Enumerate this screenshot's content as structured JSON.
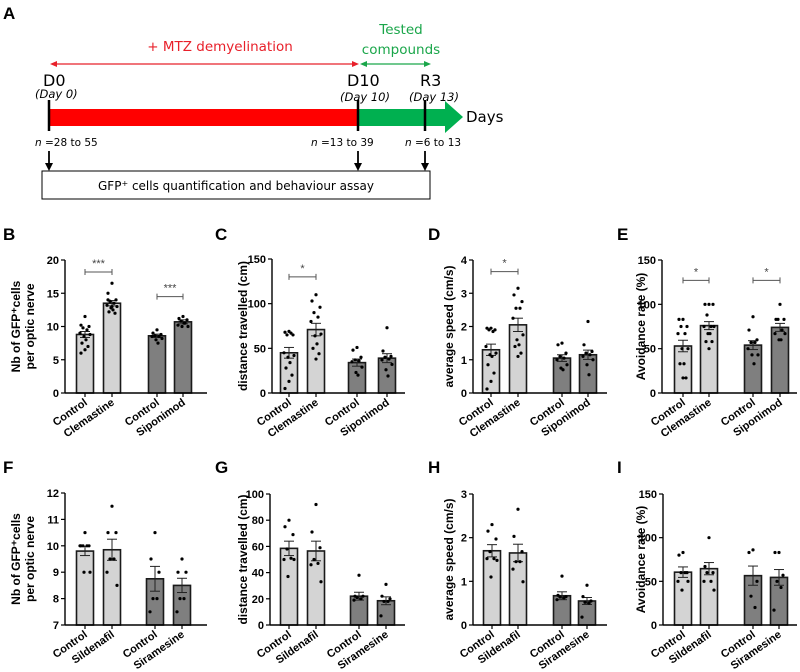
{
  "timeline": {
    "panel_letter": "A",
    "demyelination_label": "+ MTZ demyelination",
    "compounds_label_line1": "Tested",
    "compounds_label_line2": "compounds",
    "points": [
      {
        "code": "D0",
        "day": "(Day 0)",
        "n_prefix": "n",
        "n_text": " =28 to 55"
      },
      {
        "code": "D10",
        "day": "(Day 10)",
        "n_prefix": "n",
        "n_text": " =13 to 39"
      },
      {
        "code": "R3",
        "day": "(Day 13)",
        "n_prefix": "n",
        "n_text": " =6 to 13"
      }
    ],
    "axis_label": "Days",
    "assay_box_text_pre": "GFP",
    "assay_box_text_sup": "+",
    "assay_box_text_post": " cells quantification and behaviour assay",
    "colors": {
      "demyelination": "#ff0000",
      "compounds": "#00b050",
      "demyelination_text": "#e8202a",
      "compounds_text": "#1aa64a"
    }
  },
  "colors": {
    "light_bar": "#d4d4d4",
    "dark_bar": "#7f7f7f",
    "bar_edge": "#1a1a1a",
    "point": "#000000"
  },
  "chart_data": [
    {
      "panel": "B",
      "type": "bar",
      "ylabel_line1": "Nb of GFP⁺cells",
      "ylabel_line2": "per optic nerve",
      "ylim": [
        0,
        20
      ],
      "yticks": [
        0,
        5,
        10,
        15,
        20
      ],
      "categories": [
        "Control",
        "Clemastine",
        "Control",
        "Siponimod"
      ],
      "groups": [
        "light",
        "light",
        "dark",
        "dark"
      ],
      "values": [
        8.8,
        13.5,
        8.6,
        10.7
      ],
      "sem": [
        0.45,
        0.4,
        0.25,
        0.3
      ],
      "points": [
        [
          11.5,
          10.2,
          10.0,
          9.8,
          9.5,
          9.0,
          8.8,
          8.5,
          8.0,
          7.5,
          7.0,
          6.5,
          6.0
        ],
        [
          16.5,
          15.0,
          14.0,
          13.8,
          13.5,
          13.2,
          13.0,
          12.8,
          12.5,
          12.2,
          12.0,
          13.0,
          14.0
        ],
        [
          9.5,
          9.0,
          8.8,
          8.6,
          8.5,
          8.5,
          8.2,
          8.0,
          7.5
        ],
        [
          11.5,
          11.2,
          11.0,
          10.8,
          10.5,
          10.2,
          10.0,
          10.0,
          10.5
        ]
      ],
      "significance": [
        {
          "from": 0,
          "to": 1,
          "label": "***",
          "y": 18.2
        },
        {
          "from": 2,
          "to": 3,
          "label": "***",
          "y": 14.5
        }
      ]
    },
    {
      "panel": "C",
      "type": "bar",
      "ylabel_line1": "distance travelled (cm)",
      "ylabel_line2": "",
      "ylim": [
        0,
        150
      ],
      "yticks": [
        0,
        50,
        100,
        150
      ],
      "categories": [
        "Control",
        "Clemastine",
        "Control",
        "Siponimod"
      ],
      "groups": [
        "light",
        "light",
        "dark",
        "dark"
      ],
      "values": [
        45,
        71,
        34,
        39
      ],
      "sem": [
        6,
        7,
        4,
        5
      ],
      "points": [
        [
          69,
          68,
          65,
          65,
          67,
          45,
          42,
          40,
          34,
          28,
          20,
          13,
          5
        ],
        [
          110,
          103,
          96,
          90,
          85,
          80,
          66,
          64,
          55,
          50,
          44,
          38
        ],
        [
          51,
          48,
          40,
          37,
          36,
          35,
          29,
          23,
          20
        ],
        [
          73,
          47,
          41,
          40,
          38,
          37,
          32,
          26,
          19
        ]
      ],
      "significance": [
        {
          "from": 0,
          "to": 1,
          "label": "*",
          "y": 130
        }
      ]
    },
    {
      "panel": "D",
      "type": "bar",
      "ylabel_line1": "average speed (cm/s)",
      "ylabel_line2": "",
      "ylim": [
        0,
        4
      ],
      "yticks": [
        0,
        1,
        2,
        3,
        4
      ],
      "categories": [
        "Control",
        "Clemastine",
        "Control",
        "Siponimod"
      ],
      "groups": [
        "light",
        "light",
        "dark",
        "dark"
      ],
      "values": [
        1.3,
        2.05,
        1.05,
        1.15
      ],
      "sem": [
        0.17,
        0.2,
        0.1,
        0.14
      ],
      "points": [
        [
          1.95,
          1.95,
          1.9,
          1.9,
          1.85,
          1.4,
          1.2,
          1.15,
          1.1,
          0.85,
          0.6,
          0.35,
          0.12
        ],
        [
          3.15,
          2.95,
          2.75,
          2.55,
          2.55,
          2.25,
          1.75,
          1.6,
          1.45,
          1.4,
          1.2,
          1.1
        ],
        [
          1.5,
          1.45,
          1.2,
          1.1,
          1.05,
          1.0,
          0.85,
          0.75,
          0.7
        ],
        [
          2.15,
          1.45,
          1.25,
          1.2,
          1.15,
          1.1,
          1.0,
          0.85,
          0.55
        ]
      ],
      "significance": [
        {
          "from": 0,
          "to": 1,
          "label": "*",
          "y": 3.65
        }
      ]
    },
    {
      "panel": "E",
      "type": "bar",
      "ylabel_line1": "Avoidance rate (%)",
      "ylabel_line2": "",
      "ylim": [
        0,
        150
      ],
      "yticks": [
        0,
        50,
        100,
        150
      ],
      "categories": [
        "Control",
        "Clemastine",
        "Control",
        "Siponimod"
      ],
      "groups": [
        "light",
        "light",
        "dark",
        "dark"
      ],
      "values": [
        53,
        76,
        54,
        74
      ],
      "sem": [
        6.5,
        4.5,
        5,
        4.5
      ],
      "points": [
        [
          83,
          83,
          75,
          75,
          67,
          67,
          50,
          50,
          33,
          33,
          17,
          17
        ],
        [
          100,
          100,
          100,
          88,
          75,
          75,
          75,
          67,
          67,
          58,
          58,
          50
        ],
        [
          86,
          71,
          60,
          57,
          57,
          50,
          43,
          43,
          33
        ],
        [
          100,
          83,
          83,
          83,
          71,
          67,
          67,
          60,
          60
        ]
      ],
      "significance": [
        {
          "from": 0,
          "to": 1,
          "label": "*",
          "y": 127
        },
        {
          "from": 2,
          "to": 3,
          "label": "*",
          "y": 127
        }
      ]
    },
    {
      "panel": "F",
      "type": "bar",
      "ylabel_line1": "Nb of GFP⁺cells",
      "ylabel_line2": "per optic nerve",
      "ylim": [
        7,
        12
      ],
      "yticks": [
        7,
        8,
        9,
        10,
        11,
        12
      ],
      "categories": [
        "Control",
        "Sildenafil",
        "Control",
        "Siramesine"
      ],
      "groups": [
        "light",
        "light",
        "dark",
        "dark"
      ],
      "values": [
        9.8,
        9.85,
        8.75,
        8.5
      ],
      "sem": [
        0.17,
        0.4,
        0.47,
        0.27
      ],
      "points": [
        [
          10.5,
          10.0,
          10.0,
          10.0,
          10.0,
          10.0,
          9.0,
          9.0
        ],
        [
          11.5,
          10.5,
          10.5,
          9.5,
          9.5,
          9.0,
          8.5
        ],
        [
          10.5,
          9.5,
          9.0,
          8.0,
          8.0,
          7.5
        ],
        [
          9.5,
          9.0,
          9.0,
          8.0,
          8.0,
          7.5
        ]
      ],
      "significance": []
    },
    {
      "panel": "G",
      "type": "bar",
      "ylabel_line1": "distance travelled (cm)",
      "ylabel_line2": "",
      "ylim": [
        0,
        100
      ],
      "yticks": [
        0,
        20,
        40,
        60,
        80,
        100
      ],
      "categories": [
        "Control",
        "Sildenafil",
        "Control",
        "Siramesine"
      ],
      "groups": [
        "light",
        "light",
        "dark",
        "dark"
      ],
      "values": [
        58.5,
        56.5,
        22,
        18.5
      ],
      "sem": [
        5.5,
        7.5,
        3,
        3
      ],
      "points": [
        [
          80,
          75,
          69,
          58,
          51,
          50,
          50,
          37
        ],
        [
          92,
          71,
          59,
          50,
          47,
          46,
          33
        ],
        [
          38,
          22,
          22,
          21,
          20,
          19
        ],
        [
          31,
          22,
          20,
          18,
          18,
          7
        ]
      ],
      "significance": []
    },
    {
      "panel": "H",
      "type": "bar",
      "ylabel_line1": "average speed (cm/s)",
      "ylabel_line2": "",
      "ylim": [
        0,
        3
      ],
      "yticks": [
        0,
        1,
        2,
        3
      ],
      "categories": [
        "Control",
        "Sildenafil",
        "Control",
        "Siramesine"
      ],
      "groups": [
        "light",
        "light",
        "dark",
        "dark"
      ],
      "values": [
        1.7,
        1.65,
        0.67,
        0.55
      ],
      "sem": [
        0.14,
        0.2,
        0.09,
        0.08
      ],
      "points": [
        [
          2.3,
          2.15,
          1.97,
          1.68,
          1.52,
          1.52,
          1.48,
          1.1
        ],
        [
          2.65,
          2.03,
          1.68,
          1.45,
          1.45,
          1.28,
          0.99
        ],
        [
          1.12,
          0.68,
          0.65,
          0.64,
          0.62,
          0.58
        ],
        [
          0.91,
          0.65,
          0.55,
          0.52,
          0.5,
          0.18
        ]
      ],
      "significance": []
    },
    {
      "panel": "I",
      "type": "bar",
      "ylabel_line1": "Avoidance rate (%)",
      "ylabel_line2": "",
      "ylim": [
        0,
        150
      ],
      "yticks": [
        0,
        50,
        100,
        150
      ],
      "categories": [
        "Control",
        "Sildenafil",
        "Control",
        "Siramesine"
      ],
      "groups": [
        "light",
        "light",
        "dark",
        "dark"
      ],
      "values": [
        60.5,
        64.5,
        56.5,
        54.5
      ],
      "sem": [
        6,
        7,
        11,
        9
      ],
      "points": [
        [
          83,
          80,
          60,
          60,
          60,
          50,
          50,
          40
        ],
        [
          100,
          67,
          60,
          60,
          50,
          50,
          40
        ],
        [
          86,
          83,
          50,
          33,
          20
        ],
        [
          83,
          83,
          57,
          50,
          43,
          17
        ]
      ],
      "significance": []
    }
  ]
}
